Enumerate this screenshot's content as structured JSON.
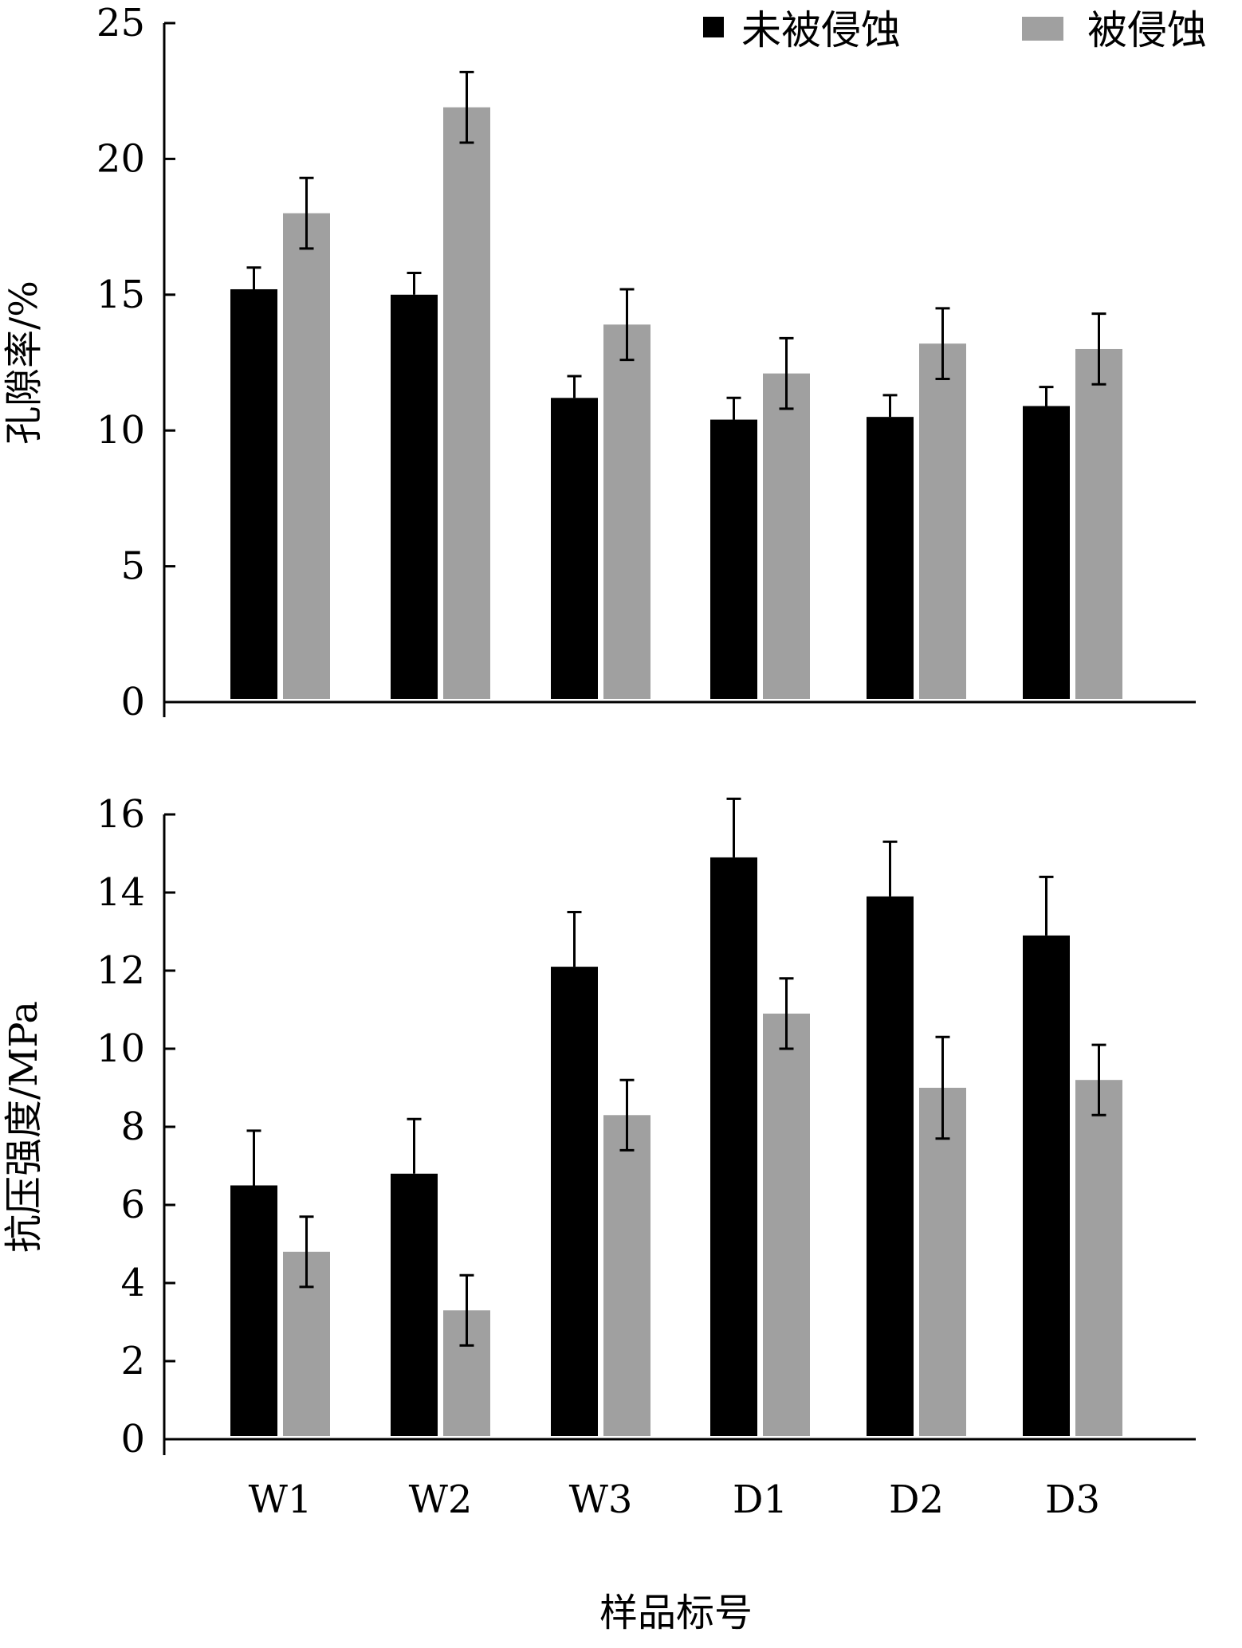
{
  "legend": [
    {
      "label": "未被侵蚀",
      "color": "#000000"
    },
    {
      "label": "被侵蚀",
      "color": "#a0a0a0"
    }
  ],
  "xlabel": "样品标号",
  "chart_data": [
    {
      "type": "bar",
      "categories": [
        "W1",
        "W2",
        "W3",
        "D1",
        "D2",
        "D3"
      ],
      "series": [
        {
          "name": "未被侵蚀",
          "color": "#000000",
          "values": [
            15.2,
            15.0,
            11.2,
            10.4,
            10.5,
            10.9
          ],
          "errors": [
            0.8,
            0.8,
            0.8,
            0.8,
            0.8,
            0.7
          ]
        },
        {
          "name": "被侵蚀",
          "color": "#a0a0a0",
          "values": [
            18.0,
            21.9,
            13.9,
            12.1,
            13.2,
            13.0
          ],
          "errors": [
            1.3,
            1.3,
            1.3,
            1.3,
            1.3,
            1.3
          ]
        }
      ],
      "ylabel": "孔隙率/%",
      "ylim": [
        0,
        25
      ],
      "yticks": [
        "0",
        "5",
        "10",
        "15",
        "20",
        "25"
      ],
      "show_xticklabels": false,
      "legend_position": "top-right",
      "grid": false
    },
    {
      "type": "bar",
      "categories": [
        "W1",
        "W2",
        "W3",
        "D1",
        "D2",
        "D3"
      ],
      "series": [
        {
          "name": "未被侵蚀",
          "color": "#000000",
          "values": [
            6.5,
            6.8,
            12.1,
            14.9,
            13.9,
            12.9
          ],
          "errors": [
            1.4,
            1.4,
            1.4,
            1.5,
            1.4,
            1.5
          ]
        },
        {
          "name": "被侵蚀",
          "color": "#a0a0a0",
          "values": [
            4.8,
            3.3,
            8.3,
            10.9,
            9.0,
            9.2
          ],
          "errors": [
            0.9,
            0.9,
            0.9,
            0.9,
            1.3,
            0.9
          ]
        }
      ],
      "ylabel": "抗压强度/MPa",
      "ylim": [
        0,
        16
      ],
      "yticks": [
        "0",
        "2",
        "4",
        "6",
        "8",
        "10",
        "12",
        "14",
        "16"
      ],
      "show_xticklabels": true,
      "grid": false
    }
  ]
}
